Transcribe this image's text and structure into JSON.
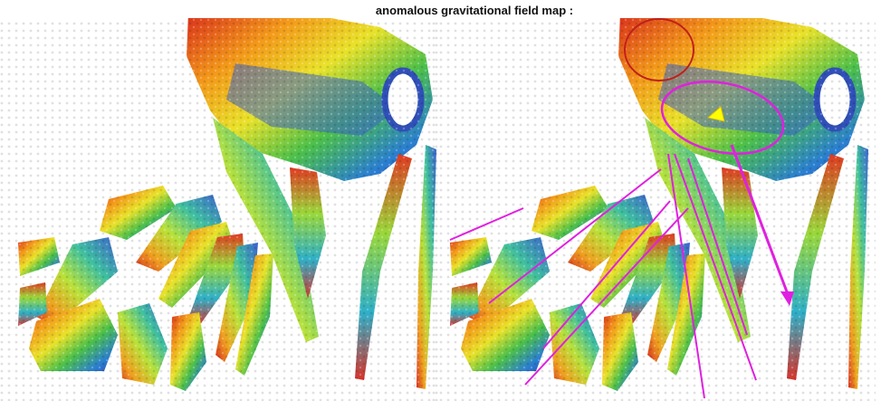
{
  "title": "anomalous gravitational field map :"
}
